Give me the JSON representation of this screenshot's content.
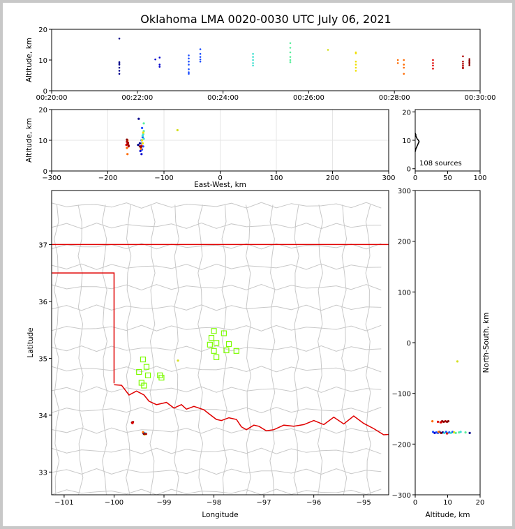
{
  "title": "Oklahoma LMA 0020-0030 UTC July 06, 2021",
  "colors": {
    "state_border": "#e00000",
    "county": "#c8c8c8",
    "station": "#7cfc00",
    "frame_bg": "#ffffff"
  },
  "source_count_label": "108 sources",
  "chart_data": [
    {
      "id": "time-altitude",
      "type": "scatter",
      "ylabel": "Altitude, km",
      "xlim_min": [
        20,
        30
      ],
      "ylim": [
        0,
        20
      ],
      "xticks": [
        "00:20:00",
        "00:22:00",
        "00:24:00",
        "00:26:00",
        "00:28:00",
        "00:30:00"
      ],
      "yticks": [
        0,
        10,
        20
      ],
      "points": [
        {
          "t": 21.58,
          "alt": 17.0,
          "color": "#00008b"
        },
        {
          "t": 21.58,
          "alt": 9.3,
          "color": "#00008b"
        },
        {
          "t": 21.58,
          "alt": 8.8,
          "color": "#00008b"
        },
        {
          "t": 21.58,
          "alt": 8.5,
          "color": "#00008b"
        },
        {
          "t": 21.58,
          "alt": 7.5,
          "color": "#00008b"
        },
        {
          "t": 21.58,
          "alt": 6.5,
          "color": "#00008b"
        },
        {
          "t": 21.58,
          "alt": 5.5,
          "color": "#00008b"
        },
        {
          "t": 22.42,
          "alt": 10.2,
          "color": "#0000cd"
        },
        {
          "t": 22.52,
          "alt": 10.8,
          "color": "#0000cd"
        },
        {
          "t": 22.52,
          "alt": 8.5,
          "color": "#0000cd"
        },
        {
          "t": 22.52,
          "alt": 7.8,
          "color": "#0000cd"
        },
        {
          "t": 23.2,
          "alt": 11.5,
          "color": "#1e50ff"
        },
        {
          "t": 23.2,
          "alt": 10.5,
          "color": "#1e50ff"
        },
        {
          "t": 23.2,
          "alt": 9.5,
          "color": "#1e50ff"
        },
        {
          "t": 23.2,
          "alt": 8.5,
          "color": "#1e50ff"
        },
        {
          "t": 23.2,
          "alt": 7.0,
          "color": "#1e50ff"
        },
        {
          "t": 23.2,
          "alt": 6.0,
          "color": "#1e50ff"
        },
        {
          "t": 23.2,
          "alt": 5.5,
          "color": "#1e50ff"
        },
        {
          "t": 23.47,
          "alt": 13.5,
          "color": "#1e50ff"
        },
        {
          "t": 23.47,
          "alt": 12.0,
          "color": "#1e50ff"
        },
        {
          "t": 23.47,
          "alt": 11.0,
          "color": "#1e50ff"
        },
        {
          "t": 23.47,
          "alt": 10.2,
          "color": "#1e50ff"
        },
        {
          "t": 23.47,
          "alt": 9.5,
          "color": "#1e50ff"
        },
        {
          "t": 24.7,
          "alt": 12.0,
          "color": "#40e0d0"
        },
        {
          "t": 24.7,
          "alt": 11.0,
          "color": "#40e0d0"
        },
        {
          "t": 24.7,
          "alt": 10.0,
          "color": "#40e0d0"
        },
        {
          "t": 24.7,
          "alt": 9.0,
          "color": "#40e0d0"
        },
        {
          "t": 24.7,
          "alt": 8.2,
          "color": "#40e0d0"
        },
        {
          "t": 25.57,
          "alt": 15.5,
          "color": "#5bee9c"
        },
        {
          "t": 25.57,
          "alt": 14.0,
          "color": "#5bee9c"
        },
        {
          "t": 25.57,
          "alt": 12.5,
          "color": "#5bee9c"
        },
        {
          "t": 25.57,
          "alt": 11.0,
          "color": "#5bee9c"
        },
        {
          "t": 25.57,
          "alt": 10.0,
          "color": "#5bee9c"
        },
        {
          "t": 25.57,
          "alt": 9.3,
          "color": "#5bee9c"
        },
        {
          "t": 26.45,
          "alt": 13.3,
          "color": "#d4e020"
        },
        {
          "t": 27.1,
          "alt": 12.5,
          "color": "#f0e000"
        },
        {
          "t": 27.1,
          "alt": 12.2,
          "color": "#f0e000"
        },
        {
          "t": 27.1,
          "alt": 9.5,
          "color": "#f0e000"
        },
        {
          "t": 27.1,
          "alt": 8.5,
          "color": "#f0e000"
        },
        {
          "t": 27.1,
          "alt": 7.5,
          "color": "#f0e000"
        },
        {
          "t": 27.1,
          "alt": 6.5,
          "color": "#f0e000"
        },
        {
          "t": 28.08,
          "alt": 10.0,
          "color": "#ff6a00"
        },
        {
          "t": 28.08,
          "alt": 9.0,
          "color": "#ff6a00"
        },
        {
          "t": 28.22,
          "alt": 10.0,
          "color": "#ff6a00"
        },
        {
          "t": 28.22,
          "alt": 8.5,
          "color": "#ff6a00"
        },
        {
          "t": 28.22,
          "alt": 7.5,
          "color": "#ff6a00"
        },
        {
          "t": 28.22,
          "alt": 5.5,
          "color": "#ff6a00"
        },
        {
          "t": 28.9,
          "alt": 10.0,
          "color": "#e00000"
        },
        {
          "t": 28.9,
          "alt": 9.0,
          "color": "#e00000"
        },
        {
          "t": 28.9,
          "alt": 8.2,
          "color": "#e00000"
        },
        {
          "t": 28.9,
          "alt": 7.2,
          "color": "#e00000"
        },
        {
          "t": 29.6,
          "alt": 11.2,
          "color": "#b00000"
        },
        {
          "t": 29.6,
          "alt": 9.5,
          "color": "#b00000"
        },
        {
          "t": 29.6,
          "alt": 8.8,
          "color": "#b00000"
        },
        {
          "t": 29.6,
          "alt": 8.2,
          "color": "#b00000"
        },
        {
          "t": 29.6,
          "alt": 7.6,
          "color": "#b00000"
        },
        {
          "t": 29.6,
          "alt": 7.3,
          "color": "#b00000"
        },
        {
          "t": 29.75,
          "alt": 10.3,
          "color": "#8b0000"
        },
        {
          "t": 29.75,
          "alt": 9.8,
          "color": "#8b0000"
        },
        {
          "t": 29.75,
          "alt": 9.3,
          "color": "#8b0000"
        },
        {
          "t": 29.75,
          "alt": 8.8,
          "color": "#8b0000"
        },
        {
          "t": 29.75,
          "alt": 8.3,
          "color": "#8b0000"
        }
      ]
    },
    {
      "id": "ew-altitude",
      "type": "scatter",
      "xlabel": "East-West, km",
      "ylabel": "Altitude, km",
      "xlim": [
        -300,
        300
      ],
      "ylim": [
        0,
        20
      ],
      "xticks": [
        -300,
        -200,
        -100,
        0,
        100,
        200,
        300
      ],
      "yticks": [
        0,
        10,
        20
      ],
      "points": [
        {
          "x": -145,
          "alt": 17.0,
          "color": "#00008b"
        },
        {
          "x": -143,
          "alt": 9.0,
          "color": "#00008b"
        },
        {
          "x": -146,
          "alt": 8.5,
          "color": "#00008b"
        },
        {
          "x": -141,
          "alt": 7.8,
          "color": "#00008b"
        },
        {
          "x": -142,
          "alt": 6.5,
          "color": "#0000cd"
        },
        {
          "x": -140,
          "alt": 5.5,
          "color": "#0000cd"
        },
        {
          "x": -138,
          "alt": 11.0,
          "color": "#1e50ff"
        },
        {
          "x": -140,
          "alt": 10.0,
          "color": "#1e50ff"
        },
        {
          "x": -139,
          "alt": 9.0,
          "color": "#1e50ff"
        },
        {
          "x": -137,
          "alt": 8.0,
          "color": "#1e50ff"
        },
        {
          "x": -139,
          "alt": 7.0,
          "color": "#1e50ff"
        },
        {
          "x": -139,
          "alt": 14.0,
          "color": "#1e50ff"
        },
        {
          "x": -136,
          "alt": 15.5,
          "color": "#5bee9c"
        },
        {
          "x": -136,
          "alt": 13.0,
          "color": "#5bee9c"
        },
        {
          "x": -137,
          "alt": 12.0,
          "color": "#40e0d0"
        },
        {
          "x": -138,
          "alt": 11.5,
          "color": "#40e0d0"
        },
        {
          "x": -136,
          "alt": 10.5,
          "color": "#40e0d0"
        },
        {
          "x": -76,
          "alt": 13.3,
          "color": "#d4e020"
        },
        {
          "x": -137,
          "alt": 12.5,
          "color": "#f0e000"
        },
        {
          "x": -139,
          "alt": 10.0,
          "color": "#f0e000"
        },
        {
          "x": -138,
          "alt": 9.0,
          "color": "#f0e000"
        },
        {
          "x": -165,
          "alt": 10.0,
          "color": "#ff6a00"
        },
        {
          "x": -164,
          "alt": 9.0,
          "color": "#ff6a00"
        },
        {
          "x": -166,
          "alt": 7.5,
          "color": "#ff6a00"
        },
        {
          "x": -165,
          "alt": 5.5,
          "color": "#ff6a00"
        },
        {
          "x": -141,
          "alt": 7.2,
          "color": "#ff6a00"
        },
        {
          "x": -163,
          "alt": 8.0,
          "color": "#e00000"
        },
        {
          "x": -167,
          "alt": 8.5,
          "color": "#e00000"
        },
        {
          "x": -140,
          "alt": 8.2,
          "color": "#e00000"
        },
        {
          "x": -166,
          "alt": 9.5,
          "color": "#b00000"
        },
        {
          "x": -164,
          "alt": 9.2,
          "color": "#b00000"
        },
        {
          "x": -165,
          "alt": 8.8,
          "color": "#b00000"
        },
        {
          "x": -163,
          "alt": 8.3,
          "color": "#8b0000"
        },
        {
          "x": -166,
          "alt": 10.2,
          "color": "#8b0000"
        },
        {
          "x": -141,
          "alt": 7.8,
          "color": "#8b0000"
        },
        {
          "x": -143,
          "alt": 8.0,
          "color": "#8b0000"
        }
      ]
    },
    {
      "id": "altitude-histogram",
      "type": "line",
      "xlim": [
        0,
        100
      ],
      "ylim": [
        0,
        20
      ],
      "xticks": [
        0,
        50,
        100
      ],
      "yticks": [
        0,
        10,
        20
      ],
      "profile": [
        {
          "alt": 6.0,
          "count": 0
        },
        {
          "alt": 7.0,
          "count": 1
        },
        {
          "alt": 7.5,
          "count": 2
        },
        {
          "alt": 8.0,
          "count": 3
        },
        {
          "alt": 8.5,
          "count": 4
        },
        {
          "alt": 9.0,
          "count": 5
        },
        {
          "alt": 9.5,
          "count": 6
        },
        {
          "alt": 10.0,
          "count": 5
        },
        {
          "alt": 10.5,
          "count": 3
        },
        {
          "alt": 11.0,
          "count": 2
        },
        {
          "alt": 11.5,
          "count": 1
        },
        {
          "alt": 12.0,
          "count": 1
        },
        {
          "alt": 12.5,
          "count": 0
        }
      ]
    },
    {
      "id": "plan-view",
      "type": "scatter",
      "xlabel": "Longitude",
      "ylabel": "Latitude",
      "xlim": [
        -101.25,
        -94.5
      ],
      "ylim": [
        32.6,
        37.95
      ],
      "xticks": [
        -101,
        -100,
        -99,
        -98,
        -97,
        -96,
        -95
      ],
      "yticks": [
        33,
        34,
        35,
        36,
        37
      ],
      "stations": [
        {
          "lon": -98.0,
          "lat": 35.48
        },
        {
          "lon": -97.8,
          "lat": 35.44
        },
        {
          "lon": -98.05,
          "lat": 35.36
        },
        {
          "lon": -97.95,
          "lat": 35.27
        },
        {
          "lon": -98.08,
          "lat": 35.24
        },
        {
          "lon": -97.7,
          "lat": 35.25
        },
        {
          "lon": -97.75,
          "lat": 35.14
        },
        {
          "lon": -97.55,
          "lat": 35.13
        },
        {
          "lon": -98.0,
          "lat": 35.13
        },
        {
          "lon": -97.95,
          "lat": 35.02
        },
        {
          "lon": -99.42,
          "lat": 34.98
        },
        {
          "lon": -99.35,
          "lat": 34.85
        },
        {
          "lon": -99.5,
          "lat": 34.76
        },
        {
          "lon": -99.32,
          "lat": 34.7
        },
        {
          "lon": -99.08,
          "lat": 34.7
        },
        {
          "lon": -99.05,
          "lat": 34.66
        },
        {
          "lon": -99.45,
          "lat": 34.57
        },
        {
          "lon": -99.4,
          "lat": 34.52
        }
      ],
      "sources": [
        {
          "lon": -99.64,
          "lat": 33.87,
          "color": "#8b0000"
        },
        {
          "lon": -99.62,
          "lat": 33.88,
          "color": "#b00000"
        },
        {
          "lon": -99.63,
          "lat": 33.86,
          "color": "#e00000"
        },
        {
          "lon": -99.41,
          "lat": 33.68,
          "color": "#00008b"
        },
        {
          "lon": -99.38,
          "lat": 33.67,
          "color": "#0000cd"
        },
        {
          "lon": -99.4,
          "lat": 33.69,
          "color": "#1e50ff"
        },
        {
          "lon": -99.37,
          "lat": 33.68,
          "color": "#40e0d0"
        },
        {
          "lon": -99.39,
          "lat": 33.66,
          "color": "#f0e000"
        },
        {
          "lon": -99.42,
          "lat": 33.7,
          "color": "#ff6a00"
        },
        {
          "lon": -99.36,
          "lat": 33.67,
          "color": "#b00000"
        },
        {
          "lon": -99.4,
          "lat": 33.67,
          "color": "#8b0000"
        },
        {
          "lon": -98.72,
          "lat": 34.96,
          "color": "#d4e020"
        }
      ]
    },
    {
      "id": "altitude-north-south",
      "type": "scatter",
      "xlabel": "Altitude, km",
      "ylabel": "North-South, km",
      "xlim": [
        0,
        20
      ],
      "ylim": [
        -300,
        300
      ],
      "xticks": [
        0,
        10,
        20
      ],
      "yticks": [
        -300,
        -200,
        -100,
        0,
        100,
        200,
        300
      ],
      "points": [
        {
          "alt": 5.3,
          "y": -155,
          "color": "#ff6a00"
        },
        {
          "alt": 7.0,
          "y": -156,
          "color": "#e00000"
        },
        {
          "alt": 7.8,
          "y": -157,
          "color": "#b00000"
        },
        {
          "alt": 8.3,
          "y": -155,
          "color": "#8b0000"
        },
        {
          "alt": 8.8,
          "y": -156,
          "color": "#8b0000"
        },
        {
          "alt": 9.3,
          "y": -155,
          "color": "#b00000"
        },
        {
          "alt": 9.8,
          "y": -156,
          "color": "#8b0000"
        },
        {
          "alt": 10.2,
          "y": -155,
          "color": "#8b0000"
        },
        {
          "alt": 8.0,
          "y": -157,
          "color": "#e00000"
        },
        {
          "alt": 13.0,
          "y": -37,
          "color": "#d4e020"
        },
        {
          "alt": 5.5,
          "y": -176,
          "color": "#1e50ff"
        },
        {
          "alt": 6.0,
          "y": -178,
          "color": "#0000cd"
        },
        {
          "alt": 6.5,
          "y": -177,
          "color": "#1e50ff"
        },
        {
          "alt": 7.0,
          "y": -178,
          "color": "#1e50ff"
        },
        {
          "alt": 7.5,
          "y": -176,
          "color": "#00008b"
        },
        {
          "alt": 8.0,
          "y": -178,
          "color": "#8b0000"
        },
        {
          "alt": 8.5,
          "y": -177,
          "color": "#00008b"
        },
        {
          "alt": 9.0,
          "y": -178,
          "color": "#40e0d0"
        },
        {
          "alt": 9.5,
          "y": -176,
          "color": "#1e50ff"
        },
        {
          "alt": 10.0,
          "y": -178,
          "color": "#40e0d0"
        },
        {
          "alt": 10.5,
          "y": -177,
          "color": "#1e50ff"
        },
        {
          "alt": 11.0,
          "y": -178,
          "color": "#40e0d0"
        },
        {
          "alt": 11.5,
          "y": -176,
          "color": "#1e50ff"
        },
        {
          "alt": 12.0,
          "y": -177,
          "color": "#f0e000"
        },
        {
          "alt": 12.5,
          "y": -178,
          "color": "#5bee9c"
        },
        {
          "alt": 13.5,
          "y": -177,
          "color": "#5bee9c"
        },
        {
          "alt": 14.0,
          "y": -176,
          "color": "#40e0d0"
        },
        {
          "alt": 15.5,
          "y": -177,
          "color": "#5bee9c"
        },
        {
          "alt": 16.8,
          "y": -178,
          "color": "#00008b"
        },
        {
          "alt": 7.2,
          "y": -176,
          "color": "#ff6a00"
        },
        {
          "alt": 9.8,
          "y": -179,
          "color": "#e00000"
        }
      ]
    }
  ]
}
